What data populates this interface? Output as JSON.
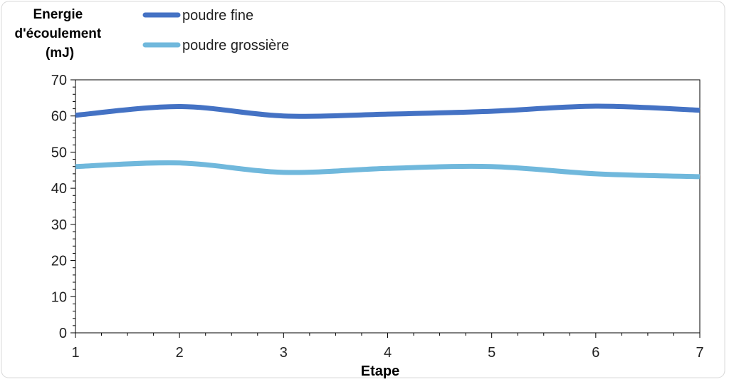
{
  "chart_data": {
    "type": "line",
    "title": "",
    "ylabel": "Energie d'écoulement (mJ)",
    "ylabel_lines": [
      "Energie",
      "d'écoulement",
      "(mJ)"
    ],
    "xlabel": "Etape",
    "x": [
      1,
      2,
      3,
      4,
      5,
      6,
      7
    ],
    "ylim": [
      0,
      70
    ],
    "yticks": [
      0,
      10,
      20,
      30,
      40,
      50,
      60,
      70
    ],
    "grid": false,
    "legend_position": "top",
    "series": [
      {
        "name": "poudre fine",
        "color": "#4472C4",
        "values": [
          60.2,
          62.6,
          60.0,
          60.5,
          61.3,
          62.7,
          61.6
        ]
      },
      {
        "name": "poudre grossière",
        "color": "#70B8DC",
        "values": [
          46.0,
          47.0,
          44.4,
          45.5,
          46.0,
          44.0,
          43.2
        ]
      }
    ]
  }
}
